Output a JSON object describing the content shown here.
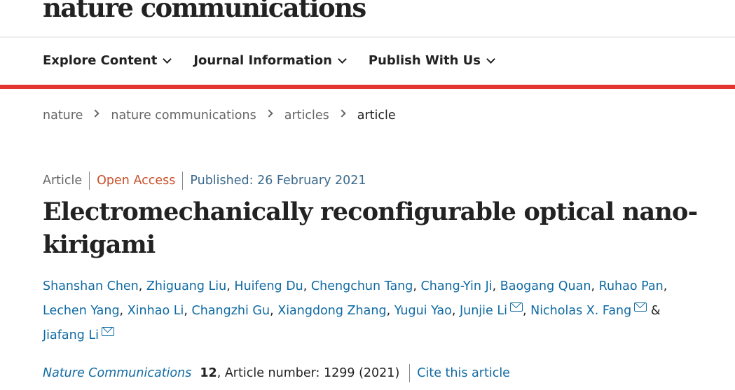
{
  "header": {
    "logo": "nature communications"
  },
  "nav": [
    {
      "label": "Explore Content"
    },
    {
      "label": "Journal Information"
    },
    {
      "label": "Publish With Us"
    }
  ],
  "breadcrumb": [
    {
      "label": "nature"
    },
    {
      "label": "nature communications"
    },
    {
      "label": "articles"
    },
    {
      "label": "article"
    }
  ],
  "meta": {
    "type": "Article",
    "access": "Open Access",
    "published": "Published: 26 February 2021"
  },
  "title": "Electromechanically reconfigurable optical nano-kirigami",
  "authors": [
    {
      "name": "Shanshan Chen"
    },
    {
      "name": "Zhiguang Liu"
    },
    {
      "name": "Huifeng Du"
    },
    {
      "name": "Chengchun Tang"
    },
    {
      "name": "Chang-Yin Ji"
    },
    {
      "name": "Baogang Quan"
    },
    {
      "name": "Ruhao Pan"
    },
    {
      "name": "Lechen Yang"
    },
    {
      "name": "Xinhao Li"
    },
    {
      "name": "Changzhi Gu"
    },
    {
      "name": "Xiangdong Zhang"
    },
    {
      "name": "Yugui Yao"
    },
    {
      "name": "Junjie Li",
      "email": true
    },
    {
      "name": "Nicholas X. Fang",
      "email": true
    },
    {
      "name": "Jiafang Li",
      "email": true
    }
  ],
  "authors_and": "&",
  "citation": {
    "journal": "Nature Communications",
    "volume": "12",
    "rest": ", Article number: 1299 (2021)",
    "cite_link": "Cite this article"
  },
  "colors": {
    "accent_red": "#e3342f",
    "link_blue": "#0f6aa3",
    "open_access": "#c8502b"
  },
  "icons": {
    "nav_dropdown": "chevron-down-icon",
    "breadcrumb_sep": "chevron-right-icon",
    "author_contact": "envelope-icon"
  }
}
